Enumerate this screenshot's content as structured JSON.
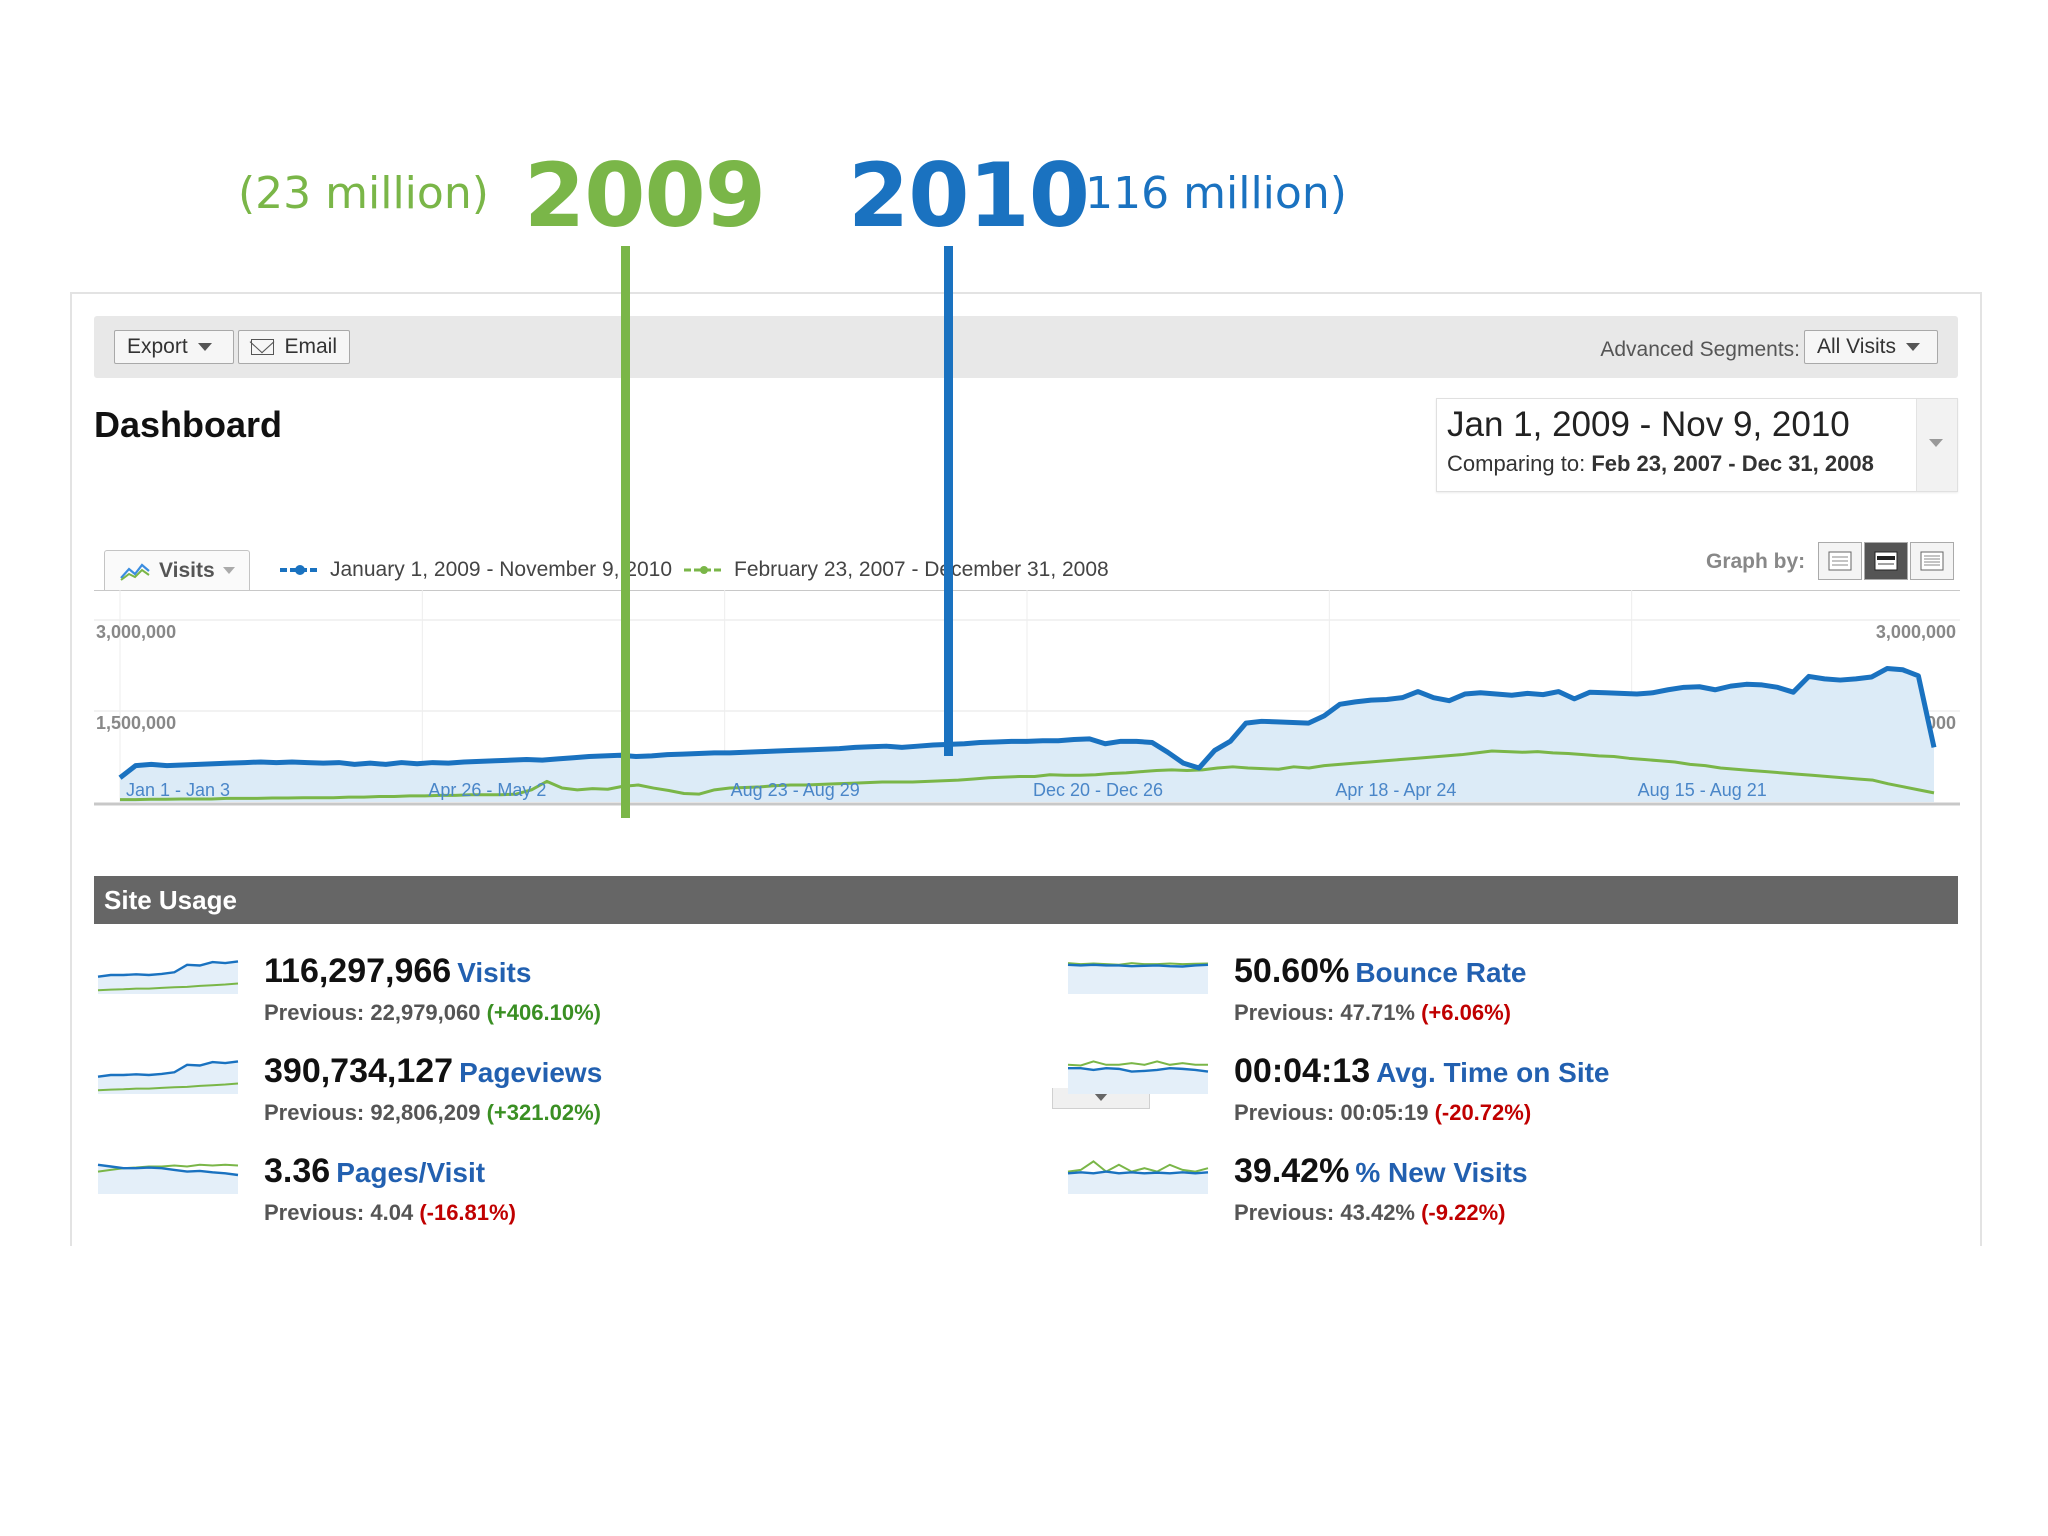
{
  "annotation": {
    "left_note": "(23 million)",
    "left_year": "2009",
    "right_year": "2010",
    "right_note": "(116 million)",
    "colors": {
      "year_2009": "#7ab648",
      "year_2010": "#1a72c0"
    }
  },
  "toolbar": {
    "export_label": "Export",
    "email_label": "Email",
    "segments_label": "Advanced Segments:",
    "segments_value": "All Visits"
  },
  "page": {
    "title": "Dashboard"
  },
  "date_picker": {
    "range": "Jan 1, 2009 - Nov 9, 2010",
    "compare_prefix": "Comparing to:",
    "compare_range": "Feb 23, 2007 - Dec 31, 2008"
  },
  "graph": {
    "metric_label": "Visits",
    "graph_by_label": "Graph by:",
    "graph_by_options": [
      "day",
      "week",
      "month"
    ],
    "graph_by_selected": "week"
  },
  "chart_data": {
    "type": "area",
    "y_ticks": [
      "3,000,000",
      "1,500,000"
    ],
    "ylim": [
      0,
      3000000
    ],
    "x_tick_labels": [
      "Jan 1 - Jan 3",
      "Apr 26 - May 2",
      "Aug 23 - Aug 29",
      "Dec 20 - Dec 26",
      "Apr 18 - Apr 24",
      "Aug 15 - Aug 21"
    ],
    "grid": true,
    "series": [
      {
        "name": "January 1, 2009 - November 9, 2010",
        "color": "#1a72c0",
        "fill": "#dcebf7",
        "values": [
          400000,
          600000,
          620000,
          600000,
          610000,
          620000,
          630000,
          640000,
          650000,
          660000,
          650000,
          660000,
          650000,
          640000,
          650000,
          620000,
          640000,
          620000,
          650000,
          630000,
          650000,
          640000,
          660000,
          670000,
          680000,
          690000,
          700000,
          690000,
          710000,
          730000,
          750000,
          760000,
          770000,
          750000,
          760000,
          780000,
          790000,
          800000,
          810000,
          810000,
          820000,
          830000,
          840000,
          850000,
          860000,
          870000,
          880000,
          900000,
          910000,
          920000,
          900000,
          920000,
          940000,
          950000,
          960000,
          980000,
          990000,
          1000000,
          1000000,
          1010000,
          1010000,
          1030000,
          1040000,
          960000,
          1000000,
          1000000,
          980000,
          820000,
          640000,
          560000,
          850000,
          1000000,
          1300000,
          1330000,
          1320000,
          1310000,
          1300000,
          1420000,
          1610000,
          1650000,
          1680000,
          1690000,
          1720000,
          1820000,
          1720000,
          1670000,
          1780000,
          1800000,
          1780000,
          1760000,
          1790000,
          1770000,
          1820000,
          1700000,
          1810000,
          1800000,
          1790000,
          1780000,
          1800000,
          1850000,
          1890000,
          1900000,
          1850000,
          1910000,
          1940000,
          1930000,
          1890000,
          1810000,
          2070000,
          2030000,
          2010000,
          2030000,
          2060000,
          2200000,
          2180000,
          2080000,
          900000
        ]
      },
      {
        "name": "February 23, 2007 - December 31, 2008",
        "color": "#7ab648",
        "values": [
          40000,
          40000,
          45000,
          45000,
          50000,
          50000,
          50000,
          60000,
          60000,
          60000,
          65000,
          65000,
          70000,
          70000,
          70000,
          80000,
          80000,
          90000,
          90000,
          100000,
          100000,
          110000,
          110000,
          120000,
          120000,
          120000,
          130000,
          200000,
          340000,
          230000,
          200000,
          220000,
          210000,
          260000,
          280000,
          230000,
          190000,
          140000,
          130000,
          200000,
          230000,
          240000,
          250000,
          270000,
          280000,
          280000,
          290000,
          300000,
          310000,
          320000,
          330000,
          330000,
          330000,
          340000,
          350000,
          360000,
          380000,
          400000,
          410000,
          420000,
          420000,
          450000,
          440000,
          440000,
          450000,
          470000,
          480000,
          500000,
          520000,
          530000,
          520000,
          530000,
          560000,
          580000,
          560000,
          550000,
          540000,
          580000,
          560000,
          600000,
          620000,
          640000,
          660000,
          680000,
          700000,
          720000,
          740000,
          760000,
          780000,
          810000,
          840000,
          830000,
          820000,
          830000,
          810000,
          800000,
          780000,
          760000,
          750000,
          720000,
          700000,
          680000,
          660000,
          620000,
          600000,
          560000,
          540000,
          520000,
          500000,
          480000,
          460000,
          440000,
          420000,
          400000,
          380000,
          360000,
          300000,
          250000,
          200000,
          150000
        ]
      }
    ],
    "markers": [
      {
        "label": "2009",
        "x_fraction": 0.278
      },
      {
        "label": "2010",
        "x_fraction": 0.445
      }
    ]
  },
  "site_usage": {
    "title": "Site Usage",
    "prev_prefix": "Previous:",
    "metrics": [
      {
        "value": "116,297,966",
        "name": "Visits",
        "previous": "22,979,060",
        "change": "(+406.10%)",
        "trend": "pos"
      },
      {
        "value": "390,734,127",
        "name": "Pageviews",
        "previous": "92,806,209",
        "change": "(+321.02%)",
        "trend": "pos"
      },
      {
        "value": "3.36",
        "name": "Pages/Visit",
        "previous": "4.04",
        "change": "(-16.81%)",
        "trend": "neg"
      },
      {
        "value": "50.60%",
        "name": "Bounce Rate",
        "previous": "47.71%",
        "change": "(+6.06%)",
        "trend": "neg"
      },
      {
        "value": "00:04:13",
        "name": "Avg. Time on Site",
        "previous": "00:05:19",
        "change": "(-20.72%)",
        "trend": "neg"
      },
      {
        "value": "39.42%",
        "name": "% New Visits",
        "previous": "43.42%",
        "change": "(-9.22%)",
        "trend": "neg"
      }
    ]
  }
}
